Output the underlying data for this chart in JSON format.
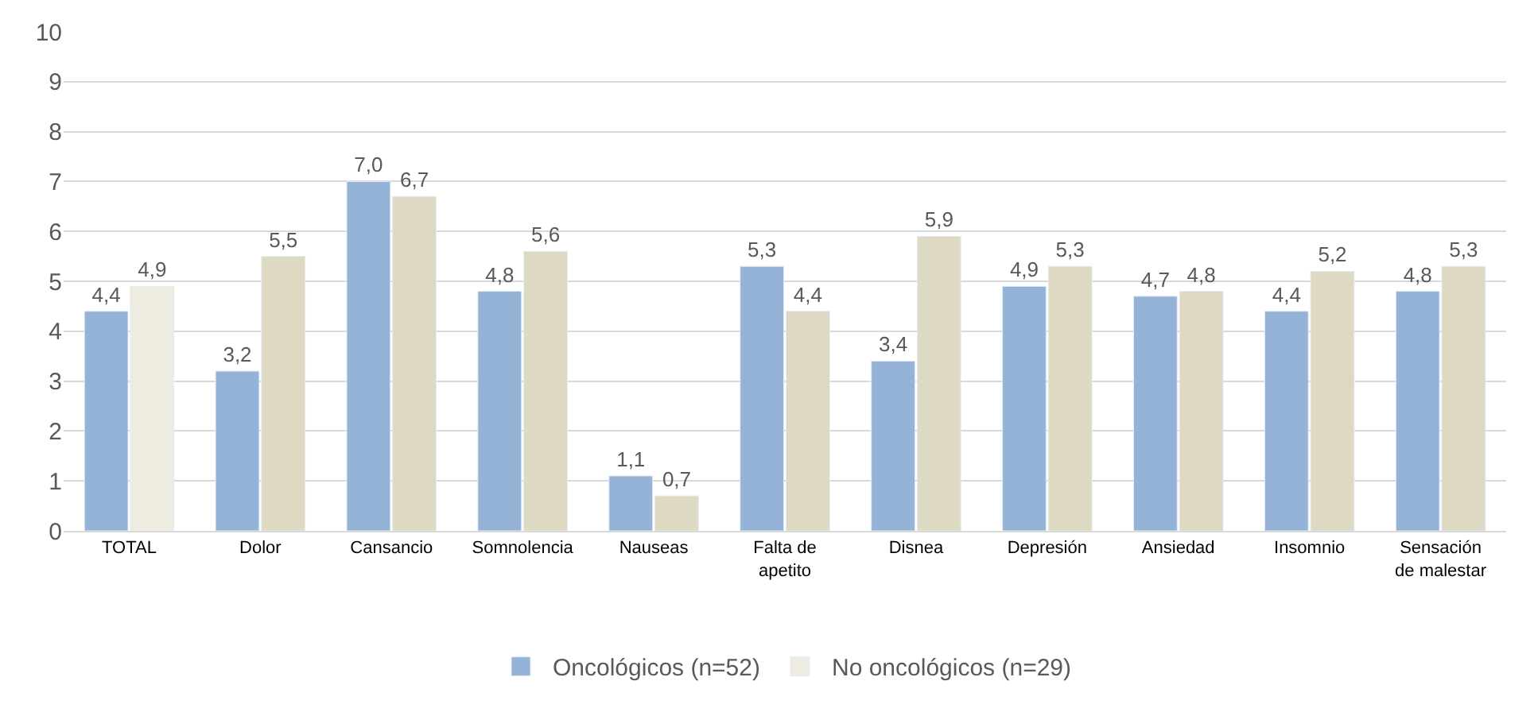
{
  "chart_data": {
    "type": "bar",
    "categories": [
      "TOTAL",
      "Dolor",
      "Cansancio",
      "Somnolencia",
      "Nauseas",
      "Falta de\napetito",
      "Disnea",
      "Depresión",
      "Ansiedad",
      "Insomnio",
      "Sensación\nde malestar"
    ],
    "series": [
      {
        "name": "Oncológicos (n=52)",
        "color": "#95b3d7",
        "values": [
          4.4,
          3.2,
          7.0,
          4.8,
          1.1,
          5.3,
          3.4,
          4.9,
          4.7,
          4.4,
          4.8
        ],
        "value_labels": [
          "4,4",
          "3,2",
          "7,0",
          "4,8",
          "1,1",
          "5,3",
          "3,4",
          "4,9",
          "4,7",
          "4,4",
          "4,8"
        ]
      },
      {
        "name": "No oncológicos (n=29)",
        "color": "#ddd9c3",
        "colors": [
          "#eeece1",
          "#ddd9c3",
          "#ddd9c3",
          "#ddd9c3",
          "#ddd9c3",
          "#ddd9c3",
          "#ddd9c3",
          "#ddd9c3",
          "#ddd9c3",
          "#ddd9c3",
          "#ddd9c3"
        ],
        "values": [
          4.9,
          5.5,
          6.7,
          5.6,
          0.7,
          4.4,
          5.9,
          5.3,
          4.8,
          5.2,
          5.3
        ],
        "value_labels": [
          "4,9",
          "5,5",
          "6,7",
          "5,6",
          "0,7",
          "4,4",
          "5,9",
          "5,3",
          "4,8",
          "5,2",
          "5,3"
        ]
      }
    ],
    "ylim": [
      0,
      10
    ],
    "yticks": [
      0,
      1,
      2,
      3,
      4,
      5,
      6,
      7,
      8,
      9,
      10
    ],
    "grid": "y",
    "legend": "bottom"
  }
}
